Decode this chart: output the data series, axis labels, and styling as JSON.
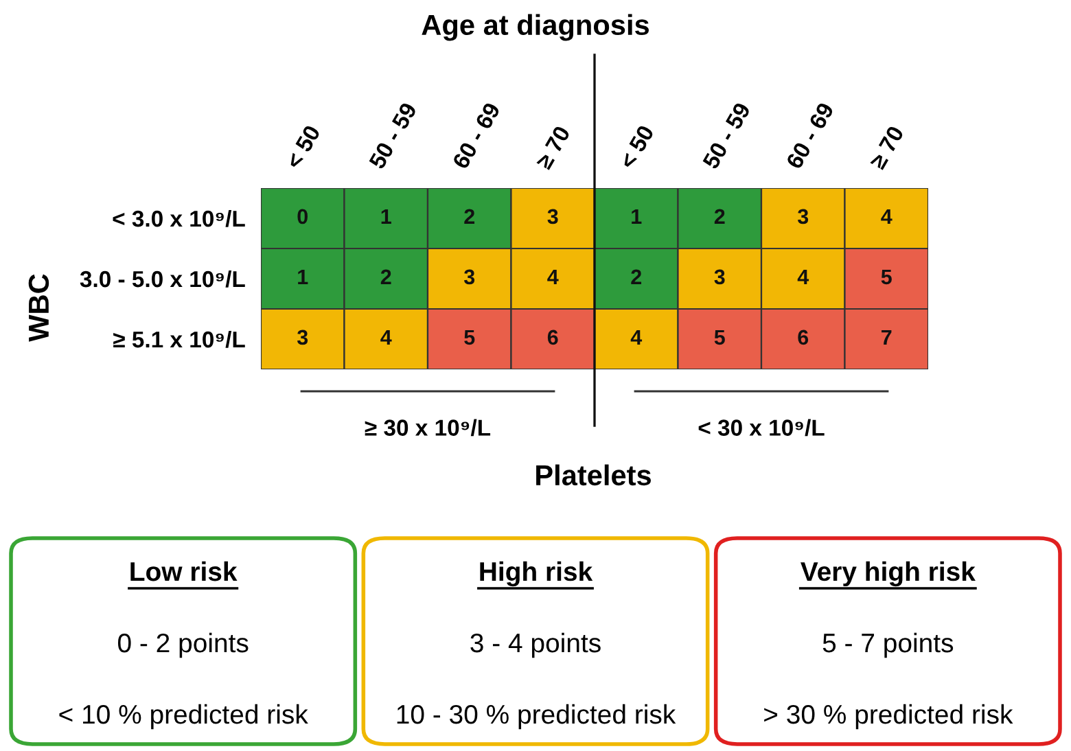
{
  "chart_data": [
    {
      "type": "heatmap",
      "title": "Age at diagnosis",
      "ylabel": "WBC",
      "xlabel": "Platelets",
      "categories": [
        "< 50",
        "50 - 59",
        "60 - 69",
        "≥ 70",
        "< 50",
        "50 - 59",
        "60 - 69",
        "≥ 70"
      ],
      "y_categories": [
        "< 3.0 x 10⁹/L",
        "3.0 - 5.0 x 10⁹/L",
        "≥ 5.1 x 10⁹/L"
      ],
      "cells": [
        [
          0,
          1,
          2,
          3,
          1,
          2,
          3,
          4
        ],
        [
          1,
          2,
          3,
          4,
          2,
          3,
          4,
          5
        ],
        [
          3,
          4,
          5,
          6,
          4,
          5,
          6,
          7
        ]
      ],
      "colors": [
        "#2e9b3c",
        "#2e9b3c",
        "#2e9b3c",
        "#f2b705",
        "#f2b705",
        "#e95f4a",
        "#e95f4a",
        "#e95f4a"
      ],
      "data_labels": true,
      "annotations": [
        "≥ 30 x 10⁹/L",
        "< 30 x 10⁹/L"
      ]
    },
    {
      "type": "other",
      "annotations": [
        "Low risk",
        "0 - 2 points",
        "< 10 % predicted risk",
        "High risk",
        "3 - 4 points",
        "10 - 30 % predicted risk",
        "Very high risk",
        "5 - 7 points",
        "> 30 % predicted risk"
      ],
      "colors": [
        "#3aa635",
        "#f0b800",
        "#e02020"
      ]
    }
  ]
}
